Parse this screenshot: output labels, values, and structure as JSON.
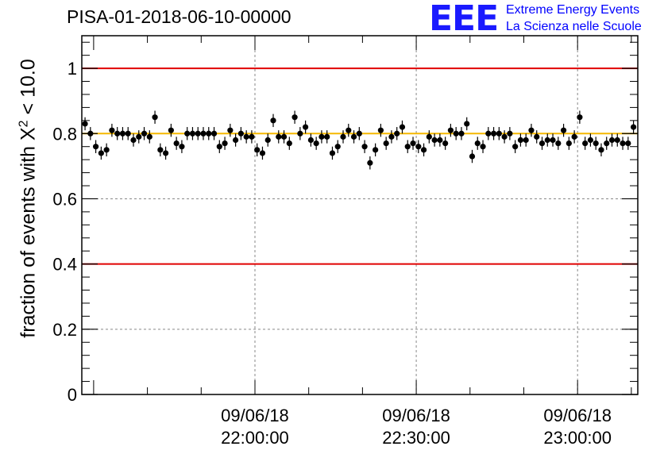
{
  "header": {
    "title": "PISA-01-2018-06-10-00000",
    "logo_text": "EEE",
    "logo_line1": "Extreme Energy Events",
    "logo_line2": "La Scienza nelle Scuole"
  },
  "chart_data": {
    "type": "scatter",
    "title": "PISA-01-2018-06-10-00000",
    "ylabel_prefix": "fraction of events with ",
    "ylabel_sym": "X",
    "ylabel_exp": "2",
    "ylabel_suffix": " < 10.0",
    "ylim": [
      0,
      1.1
    ],
    "yticks": [
      0,
      0.2,
      0.4,
      0.6,
      0.8,
      1
    ],
    "yticklabels": [
      "0",
      "0.2",
      "0.4",
      "0.6",
      "0.8",
      "1"
    ],
    "xrange_minutes_since_2130": [
      -2.3,
      49.4
    ],
    "xticks": [
      {
        "minutes": 13.8,
        "date": "09/06/18",
        "time": "22:00:00"
      },
      {
        "minutes": 28.8,
        "date": "09/06/18",
        "time": "22:30:00"
      },
      {
        "minutes": 43.8,
        "date": "09/06/18",
        "time": "23:00:00"
      }
    ],
    "grid": true,
    "reference_lines": [
      {
        "y": 1.0,
        "color": "#e00000"
      },
      {
        "y": 0.4,
        "color": "#e00000"
      },
      {
        "y": 0.8,
        "color": "#f5b800"
      }
    ],
    "error": 0.02,
    "series": [
      {
        "points_per_minute": 2,
        "values": [
          0.83,
          0.8,
          0.76,
          0.74,
          0.75,
          0.81,
          0.8,
          0.8,
          0.8,
          0.78,
          0.79,
          0.8,
          0.79,
          0.85,
          0.75,
          0.74,
          0.81,
          0.77,
          0.76,
          0.8,
          0.8,
          0.8,
          0.8,
          0.8,
          0.8,
          0.76,
          0.77,
          0.81,
          0.78,
          0.8,
          0.79,
          0.79,
          0.75,
          0.74,
          0.78,
          0.84,
          0.79,
          0.79,
          0.77,
          0.85,
          0.8,
          0.82,
          0.78,
          0.77,
          0.79,
          0.79,
          0.74,
          0.76,
          0.79,
          0.81,
          0.79,
          0.8,
          0.76,
          0.71,
          0.75,
          0.81,
          0.77,
          0.79,
          0.8,
          0.82,
          0.76,
          0.77,
          0.76,
          0.75,
          0.79,
          0.78,
          0.78,
          0.77,
          0.81,
          0.8,
          0.8,
          0.83,
          0.73,
          0.77,
          0.76,
          0.8,
          0.8,
          0.8,
          0.79,
          0.8,
          0.76,
          0.78,
          0.78,
          0.81,
          0.79,
          0.77,
          0.78,
          0.78,
          0.77,
          0.81,
          0.77,
          0.79,
          0.85,
          0.77,
          0.78,
          0.77,
          0.75,
          0.77,
          0.78,
          0.78,
          0.77,
          0.77,
          0.82
        ]
      }
    ]
  }
}
